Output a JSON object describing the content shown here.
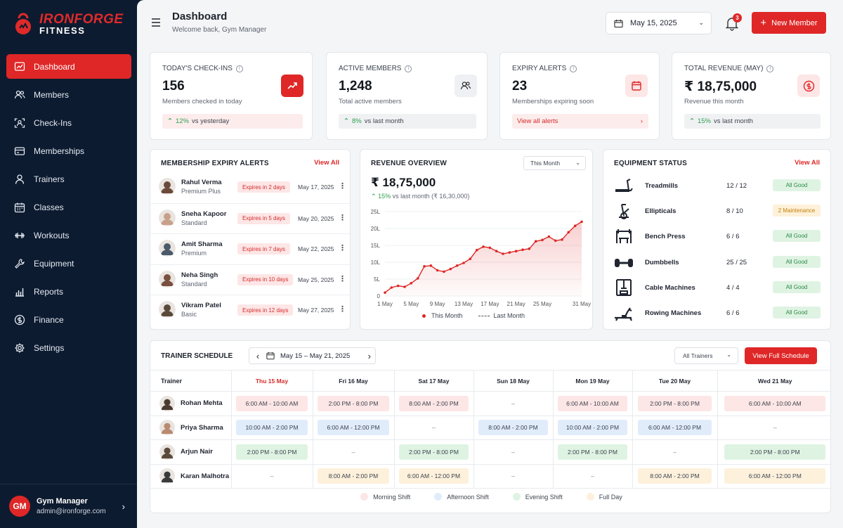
{
  "brand": {
    "name_line1": "IRONFORGE",
    "name_line2": "FITNESS"
  },
  "nav": [
    {
      "label": "Dashboard",
      "icon": "dashboard-icon",
      "active": true
    },
    {
      "label": "Members",
      "icon": "members-icon"
    },
    {
      "label": "Check-Ins",
      "icon": "checkin-icon"
    },
    {
      "label": "Memberships",
      "icon": "card-icon"
    },
    {
      "label": "Trainers",
      "icon": "trainer-icon"
    },
    {
      "label": "Classes",
      "icon": "calendar-icon"
    },
    {
      "label": "Workouts",
      "icon": "dumbbell-icon"
    },
    {
      "label": "Equipment",
      "icon": "wrench-icon"
    },
    {
      "label": "Reports",
      "icon": "reports-icon"
    },
    {
      "label": "Finance",
      "icon": "dollar-icon"
    },
    {
      "label": "Settings",
      "icon": "gear-icon"
    }
  ],
  "user": {
    "initials": "GM",
    "name": "Gym Manager",
    "email": "admin@ironforge.com"
  },
  "header": {
    "title": "Dashboard",
    "subtitle": "Welcome back, Gym Manager",
    "date": "May 15, 2025",
    "notifications": "3",
    "new_member": "New Member"
  },
  "stats": [
    {
      "label": "TODAY'S CHECK-INS",
      "value": "156",
      "sub": "Members checked in today",
      "trend": "12%",
      "trend_text": "vs yesterday"
    },
    {
      "label": "ACTIVE MEMBERS",
      "value": "1,248",
      "sub": "Total active members",
      "trend": "8%",
      "trend_text": "vs last month"
    },
    {
      "label": "EXPIRY ALERTS",
      "value": "23",
      "sub": "Memberships expiring soon",
      "link": "View all alerts"
    },
    {
      "label": "TOTAL REVENUE (MAY)",
      "value": "₹ 18,75,000",
      "sub": "Revenue this month",
      "trend": "15%",
      "trend_text": "vs last month"
    }
  ],
  "expiry": {
    "title": "MEMBERSHIP EXPIRY ALERTS",
    "view_all": "View All",
    "rows": [
      {
        "name": "Rahul Verma",
        "plan": "Premium Plus",
        "badge": "Expires in 2 days",
        "date": "May 17, 2025"
      },
      {
        "name": "Sneha Kapoor",
        "plan": "Standard",
        "badge": "Expires in 5 days",
        "date": "May 20, 2025"
      },
      {
        "name": "Amit Sharma",
        "plan": "Premium",
        "badge": "Expires in 7 days",
        "date": "May 22, 2025"
      },
      {
        "name": "Neha Singh",
        "plan": "Standard",
        "badge": "Expires in 10 days",
        "date": "May 25, 2025"
      },
      {
        "name": "Vikram Patel",
        "plan": "Basic",
        "badge": "Expires in 12 days",
        "date": "May 27, 2025"
      }
    ]
  },
  "revenue": {
    "title": "REVENUE OVERVIEW",
    "period": "This Month",
    "total": "₹ 18,75,000",
    "trend": "15%",
    "trend_text": "vs last month (₹ 16,30,000)",
    "legend_this": "This Month",
    "legend_last": "Last Month"
  },
  "chart_data": {
    "type": "line",
    "x_ticks": [
      "1 May",
      "5 May",
      "9 May",
      "13 May",
      "17 May",
      "21 May",
      "25 May",
      "31 May"
    ],
    "y_ticks": [
      "0",
      "5L",
      "10L",
      "15L",
      "20L",
      "25L"
    ],
    "ylim": [
      0,
      25
    ],
    "series": [
      {
        "name": "This Month",
        "x": [
          1,
          2,
          3,
          4,
          5,
          6,
          7,
          8,
          9,
          10,
          11,
          12,
          13,
          14,
          15,
          16,
          17,
          18,
          19,
          20,
          21,
          22,
          23,
          24,
          25,
          26,
          27,
          28,
          29,
          30,
          31
        ],
        "values": [
          1.0,
          2.5,
          3.0,
          2.7,
          3.8,
          5.2,
          8.8,
          9.0,
          7.6,
          7.2,
          8.0,
          9.0,
          9.8,
          11.0,
          13.6,
          14.6,
          14.3,
          13.3,
          12.5,
          12.9,
          13.3,
          13.7,
          14.0,
          16.2,
          16.6,
          17.6,
          16.4,
          16.7,
          18.9,
          20.8,
          22.0
        ]
      },
      {
        "name": "Last Month",
        "values": []
      }
    ]
  },
  "equipment": {
    "title": "EQUIPMENT STATUS",
    "view_all": "View All",
    "rows": [
      {
        "name": "Treadmills",
        "count": "12 / 12",
        "status": "All Good",
        "icon": "treadmill-icon"
      },
      {
        "name": "Ellipticals",
        "count": "8 / 10",
        "status": "2 Maintenance",
        "icon": "elliptical-icon"
      },
      {
        "name": "Bench Press",
        "count": "6 / 6",
        "status": "All Good",
        "icon": "bench-press-icon"
      },
      {
        "name": "Dumbbells",
        "count": "25 / 25",
        "status": "All Good",
        "icon": "dumbbell-icon"
      },
      {
        "name": "Cable Machines",
        "count": "4 / 4",
        "status": "All Good",
        "icon": "cable-machine-icon"
      },
      {
        "name": "Rowing Machines",
        "count": "6 / 6",
        "status": "All Good",
        "icon": "rowing-icon"
      }
    ]
  },
  "schedule": {
    "title": "TRAINER SCHEDULE",
    "range": "May 15 – May 21, 2025",
    "filter": "All Trainers",
    "button": "View Full Schedule",
    "col_trainer": "Trainer",
    "days": [
      "Thu 15 May",
      "Fri 16 May",
      "Sat 17 May",
      "Sun 18 May",
      "Mon 19 May",
      "Tue 20 May",
      "Wed 21 May"
    ],
    "trainers": [
      {
        "name": "Rohan Mehta",
        "shifts": [
          [
            "6:00 AM - 10:00 AM",
            "m"
          ],
          [
            "2:00 PM - 8:00 PM",
            "m"
          ],
          [
            "8:00 AM - 2:00 PM",
            "m"
          ],
          [
            "–",
            ""
          ],
          [
            "6:00 AM - 10:00 AM",
            "m"
          ],
          [
            "2:00 PM - 8:00 PM",
            "m"
          ],
          [
            "6:00 AM - 10:00 AM",
            "m"
          ]
        ]
      },
      {
        "name": "Priya Sharma",
        "shifts": [
          [
            "10:00 AM - 2:00 PM",
            "a"
          ],
          [
            "6:00 AM - 12:00 PM",
            "a"
          ],
          [
            "–",
            ""
          ],
          [
            "8:00 AM - 2:00 PM",
            "a"
          ],
          [
            "10:00 AM - 2:00 PM",
            "a"
          ],
          [
            "6:00 AM - 12:00 PM",
            "a"
          ],
          [
            "–",
            ""
          ]
        ]
      },
      {
        "name": "Arjun Nair",
        "shifts": [
          [
            "2:00 PM - 8:00 PM",
            "e"
          ],
          [
            "–",
            ""
          ],
          [
            "2:00 PM - 8:00 PM",
            "e"
          ],
          [
            "–",
            ""
          ],
          [
            "2:00 PM - 8:00 PM",
            "e"
          ],
          [
            "–",
            ""
          ],
          [
            "2:00 PM - 8:00 PM",
            "e"
          ]
        ]
      },
      {
        "name": "Karan Malhotra",
        "shifts": [
          [
            "–",
            ""
          ],
          [
            "8:00 AM - 2:00 PM",
            "f"
          ],
          [
            "6:00 AM - 12:00 PM",
            "f"
          ],
          [
            "–",
            ""
          ],
          [
            "–",
            ""
          ],
          [
            "8:00 AM - 2:00 PM",
            "f"
          ],
          [
            "6:00 AM - 12:00 PM",
            "f"
          ]
        ]
      }
    ],
    "legend": [
      "Morning Shift",
      "Afternoon Shift",
      "Evening Shift",
      "Full Day"
    ]
  },
  "colors": {
    "accent": "#df2727",
    "sidebar": "#0d1b30",
    "morning": "#fde6e6",
    "afternoon": "#e1ecfb",
    "evening": "#dff3e3",
    "fullday": "#fdf1dc"
  }
}
